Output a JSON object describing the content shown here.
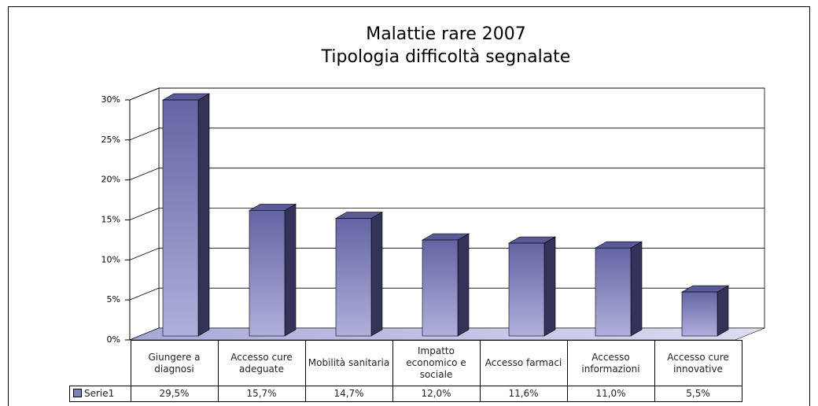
{
  "chart_data": {
    "type": "bar3d",
    "title": "Malattie rare 2007",
    "subtitle": "Tipologia difficoltà segnalate",
    "categories": [
      "Giungere a diagnosi",
      "Accesso cure adeguate",
      "Mobilità sanitaria",
      "Impatto economico e sociale",
      "Accesso farmaci",
      "Accesso informazioni",
      "Accesso cure innovative"
    ],
    "series": [
      {
        "name": "Serie1",
        "color": "#8080c0",
        "values": [
          29.5,
          15.7,
          14.7,
          12.0,
          11.6,
          11.0,
          5.5
        ],
        "value_labels": [
          "29,5%",
          "15,7%",
          "14,7%",
          "12,0%",
          "11,6%",
          "11,0%",
          "5,5%"
        ]
      }
    ],
    "ylim": [
      0,
      30
    ],
    "yticks": [
      {
        "value": 0,
        "label": "0%"
      },
      {
        "value": 5,
        "label": "5%"
      },
      {
        "value": 10,
        "label": "10%"
      },
      {
        "value": 15,
        "label": "15%"
      },
      {
        "value": 20,
        "label": "20%"
      },
      {
        "value": 25,
        "label": "25%"
      },
      {
        "value": 30,
        "label": "30%"
      }
    ],
    "grid": true
  }
}
